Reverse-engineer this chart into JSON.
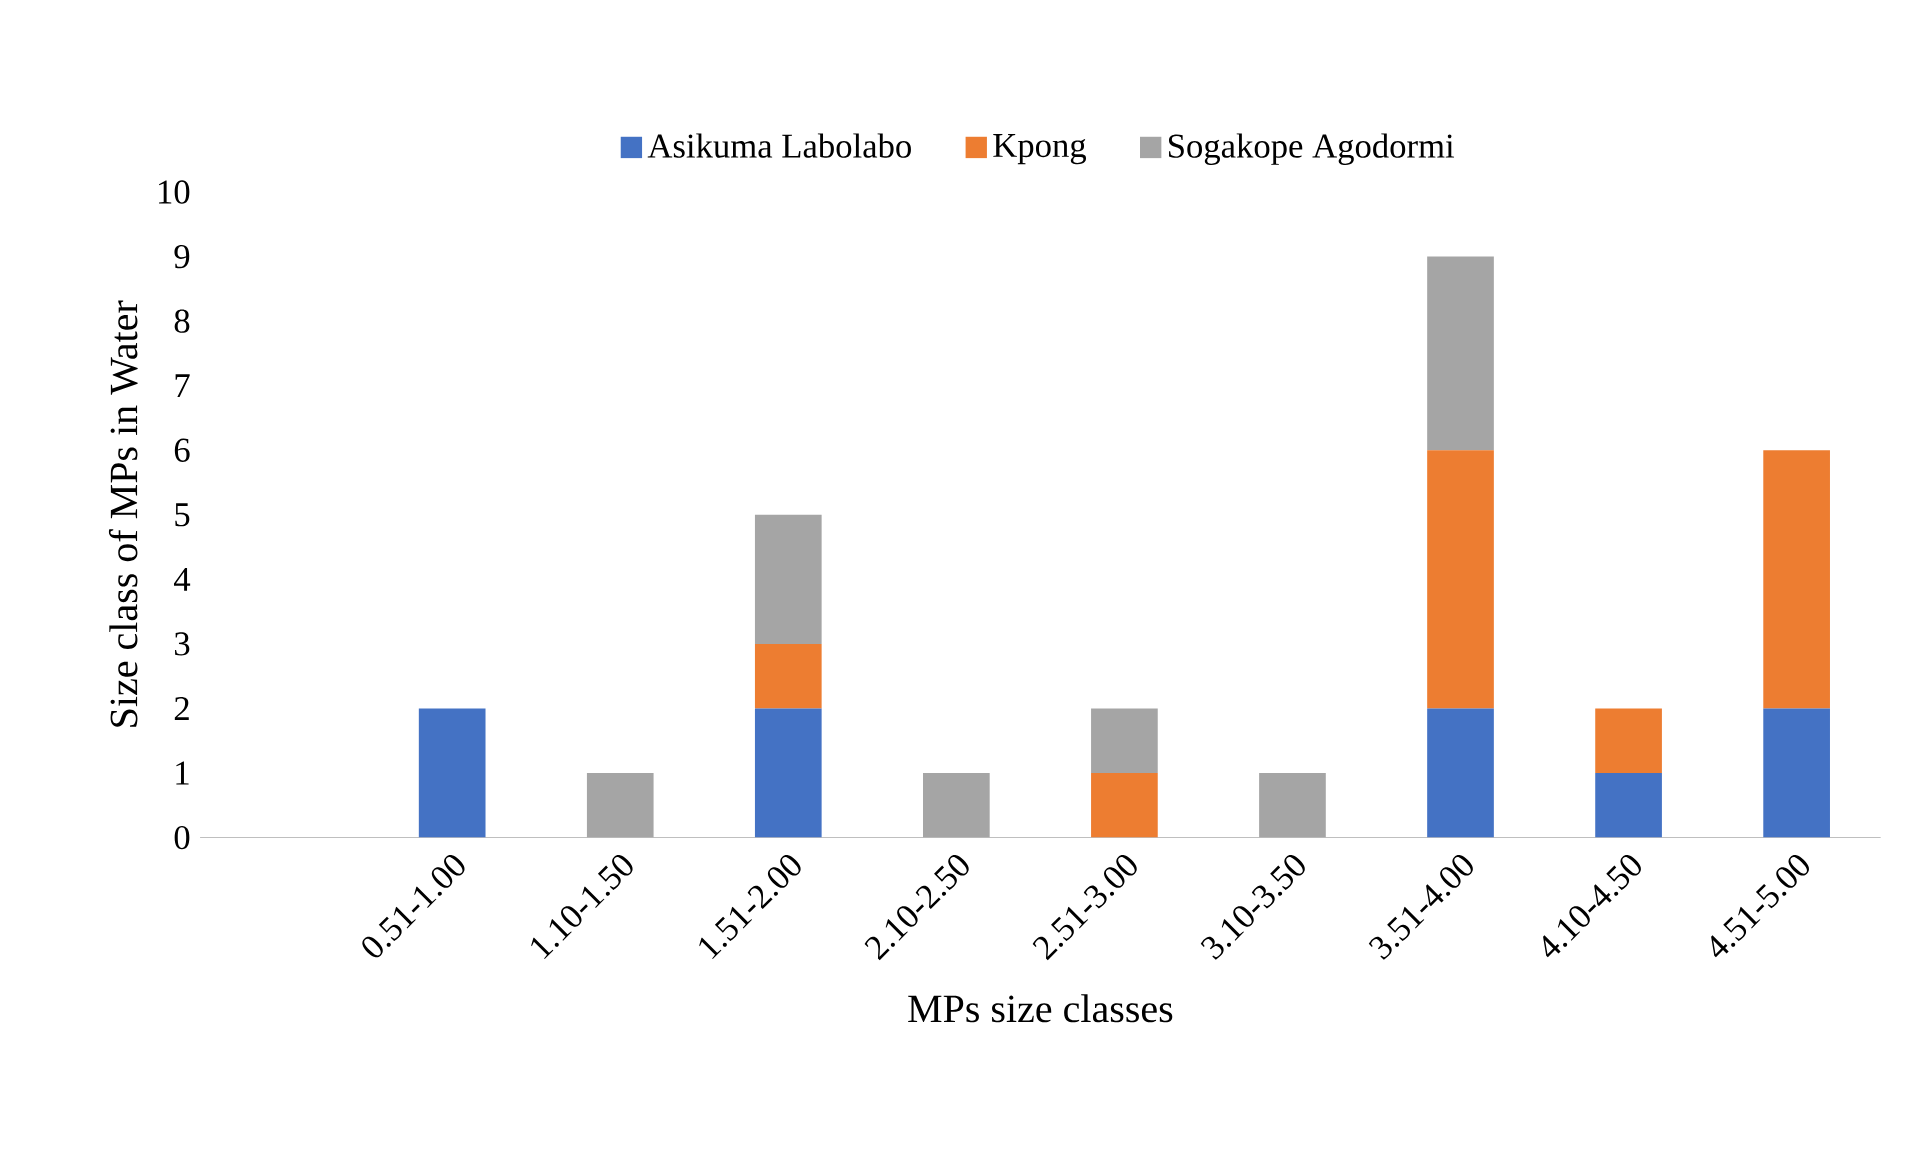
{
  "chart_data": {
    "type": "bar",
    "stacked": true,
    "xlabel": "MPs size classes",
    "ylabel": "Size class of MPs in Water",
    "categories": [
      null,
      "0.51-1.00",
      "1.10-1.50",
      "1.51-2.00",
      "2.10-2.50",
      "2.51-3.00",
      "3.10-3.50",
      "3.51-4.00",
      "4.10-4.50",
      "4.51-5.00"
    ],
    "series": [
      {
        "name": "Asikuma Labolabo",
        "color": "#4472c4",
        "values": [
          0,
          2,
          0,
          2,
          0,
          0,
          0,
          2,
          1,
          2
        ]
      },
      {
        "name": "Kpong",
        "color": "#ed7d31",
        "values": [
          0,
          0,
          0,
          1,
          0,
          1,
          0,
          4,
          1,
          4
        ]
      },
      {
        "name": "Sogakope Agodormi",
        "color": "#a5a5a5",
        "values": [
          0,
          0,
          1,
          2,
          1,
          1,
          1,
          3,
          0,
          0
        ]
      }
    ],
    "ylim": [
      0,
      10
    ],
    "yticks": [
      0,
      1,
      2,
      3,
      4,
      5,
      6,
      7,
      8,
      9,
      10
    ],
    "grid": false,
    "legend": "top"
  }
}
